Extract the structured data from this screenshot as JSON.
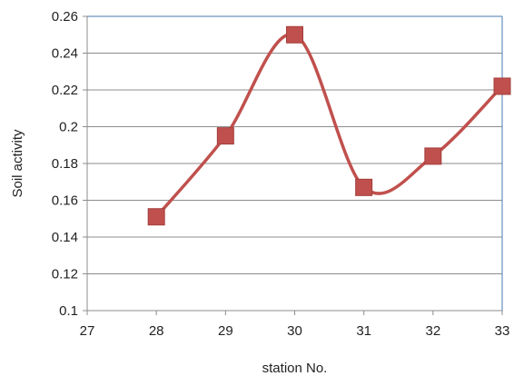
{
  "chart_data": {
    "type": "line",
    "title": "",
    "xlabel": "station No.",
    "ylabel": "Soil activity",
    "xlim": [
      27,
      33
    ],
    "ylim": [
      0.1,
      0.26
    ],
    "x_ticks": [
      "27",
      "28",
      "29",
      "30",
      "31",
      "32",
      "33"
    ],
    "y_ticks": [
      "0.1",
      "0.12",
      "0.14",
      "0.16",
      "0.18",
      "0.2",
      "0.22",
      "0.24",
      "0.26"
    ],
    "grid": "horizontal",
    "legend": "none",
    "series": [
      {
        "color": "#c0504d",
        "marker": "square",
        "smooth": true,
        "x": [
          28,
          29,
          30,
          31,
          32,
          33
        ],
        "y": [
          0.151,
          0.195,
          0.25,
          0.167,
          0.184,
          0.222
        ]
      }
    ]
  },
  "colors": {
    "series": "#c0504d",
    "marker": "#c0504d",
    "grid": "#8c8c8c",
    "plot_border": "#8c8c8c",
    "axis_border": "#4a7ab0"
  }
}
